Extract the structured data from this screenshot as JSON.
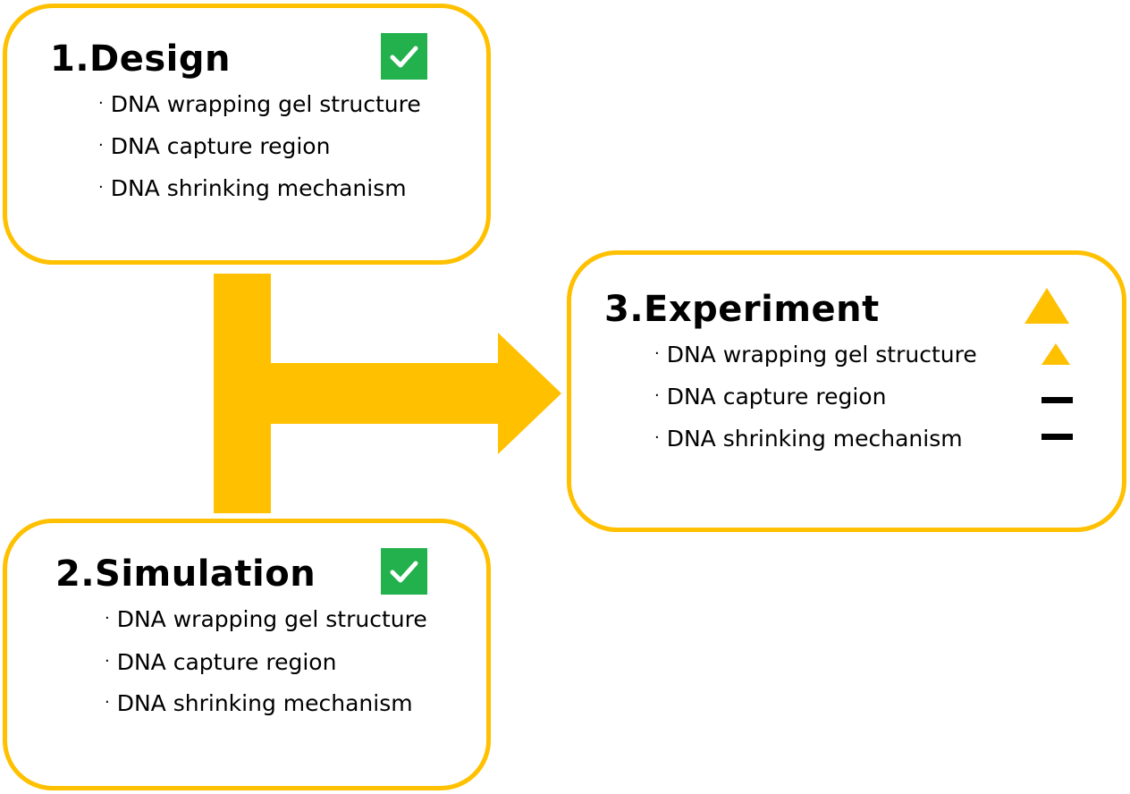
{
  "design": {
    "title": "1.Design",
    "items": [
      "DNA wrapping gel structure",
      "DNA capture region",
      "DNA shrinking mechanism"
    ],
    "status_icon": "check-icon"
  },
  "simulation": {
    "title": "2.Simulation",
    "items": [
      "DNA wrapping gel structure",
      "DNA capture region",
      "DNA shrinking mechanism"
    ],
    "status_icon": "check-icon"
  },
  "experiment": {
    "title": "3.Experiment",
    "status_icon": "triangle-icon",
    "items": [
      {
        "label": "DNA wrapping gel structure",
        "status_icon": "triangle-icon"
      },
      {
        "label": "DNA capture region",
        "status_icon": "dash-icon"
      },
      {
        "label": "DNA shrinking mechanism",
        "status_icon": "dash-icon"
      }
    ]
  },
  "colors": {
    "accent": "#FFC000",
    "check": "#22B14C",
    "text": "#000000"
  }
}
